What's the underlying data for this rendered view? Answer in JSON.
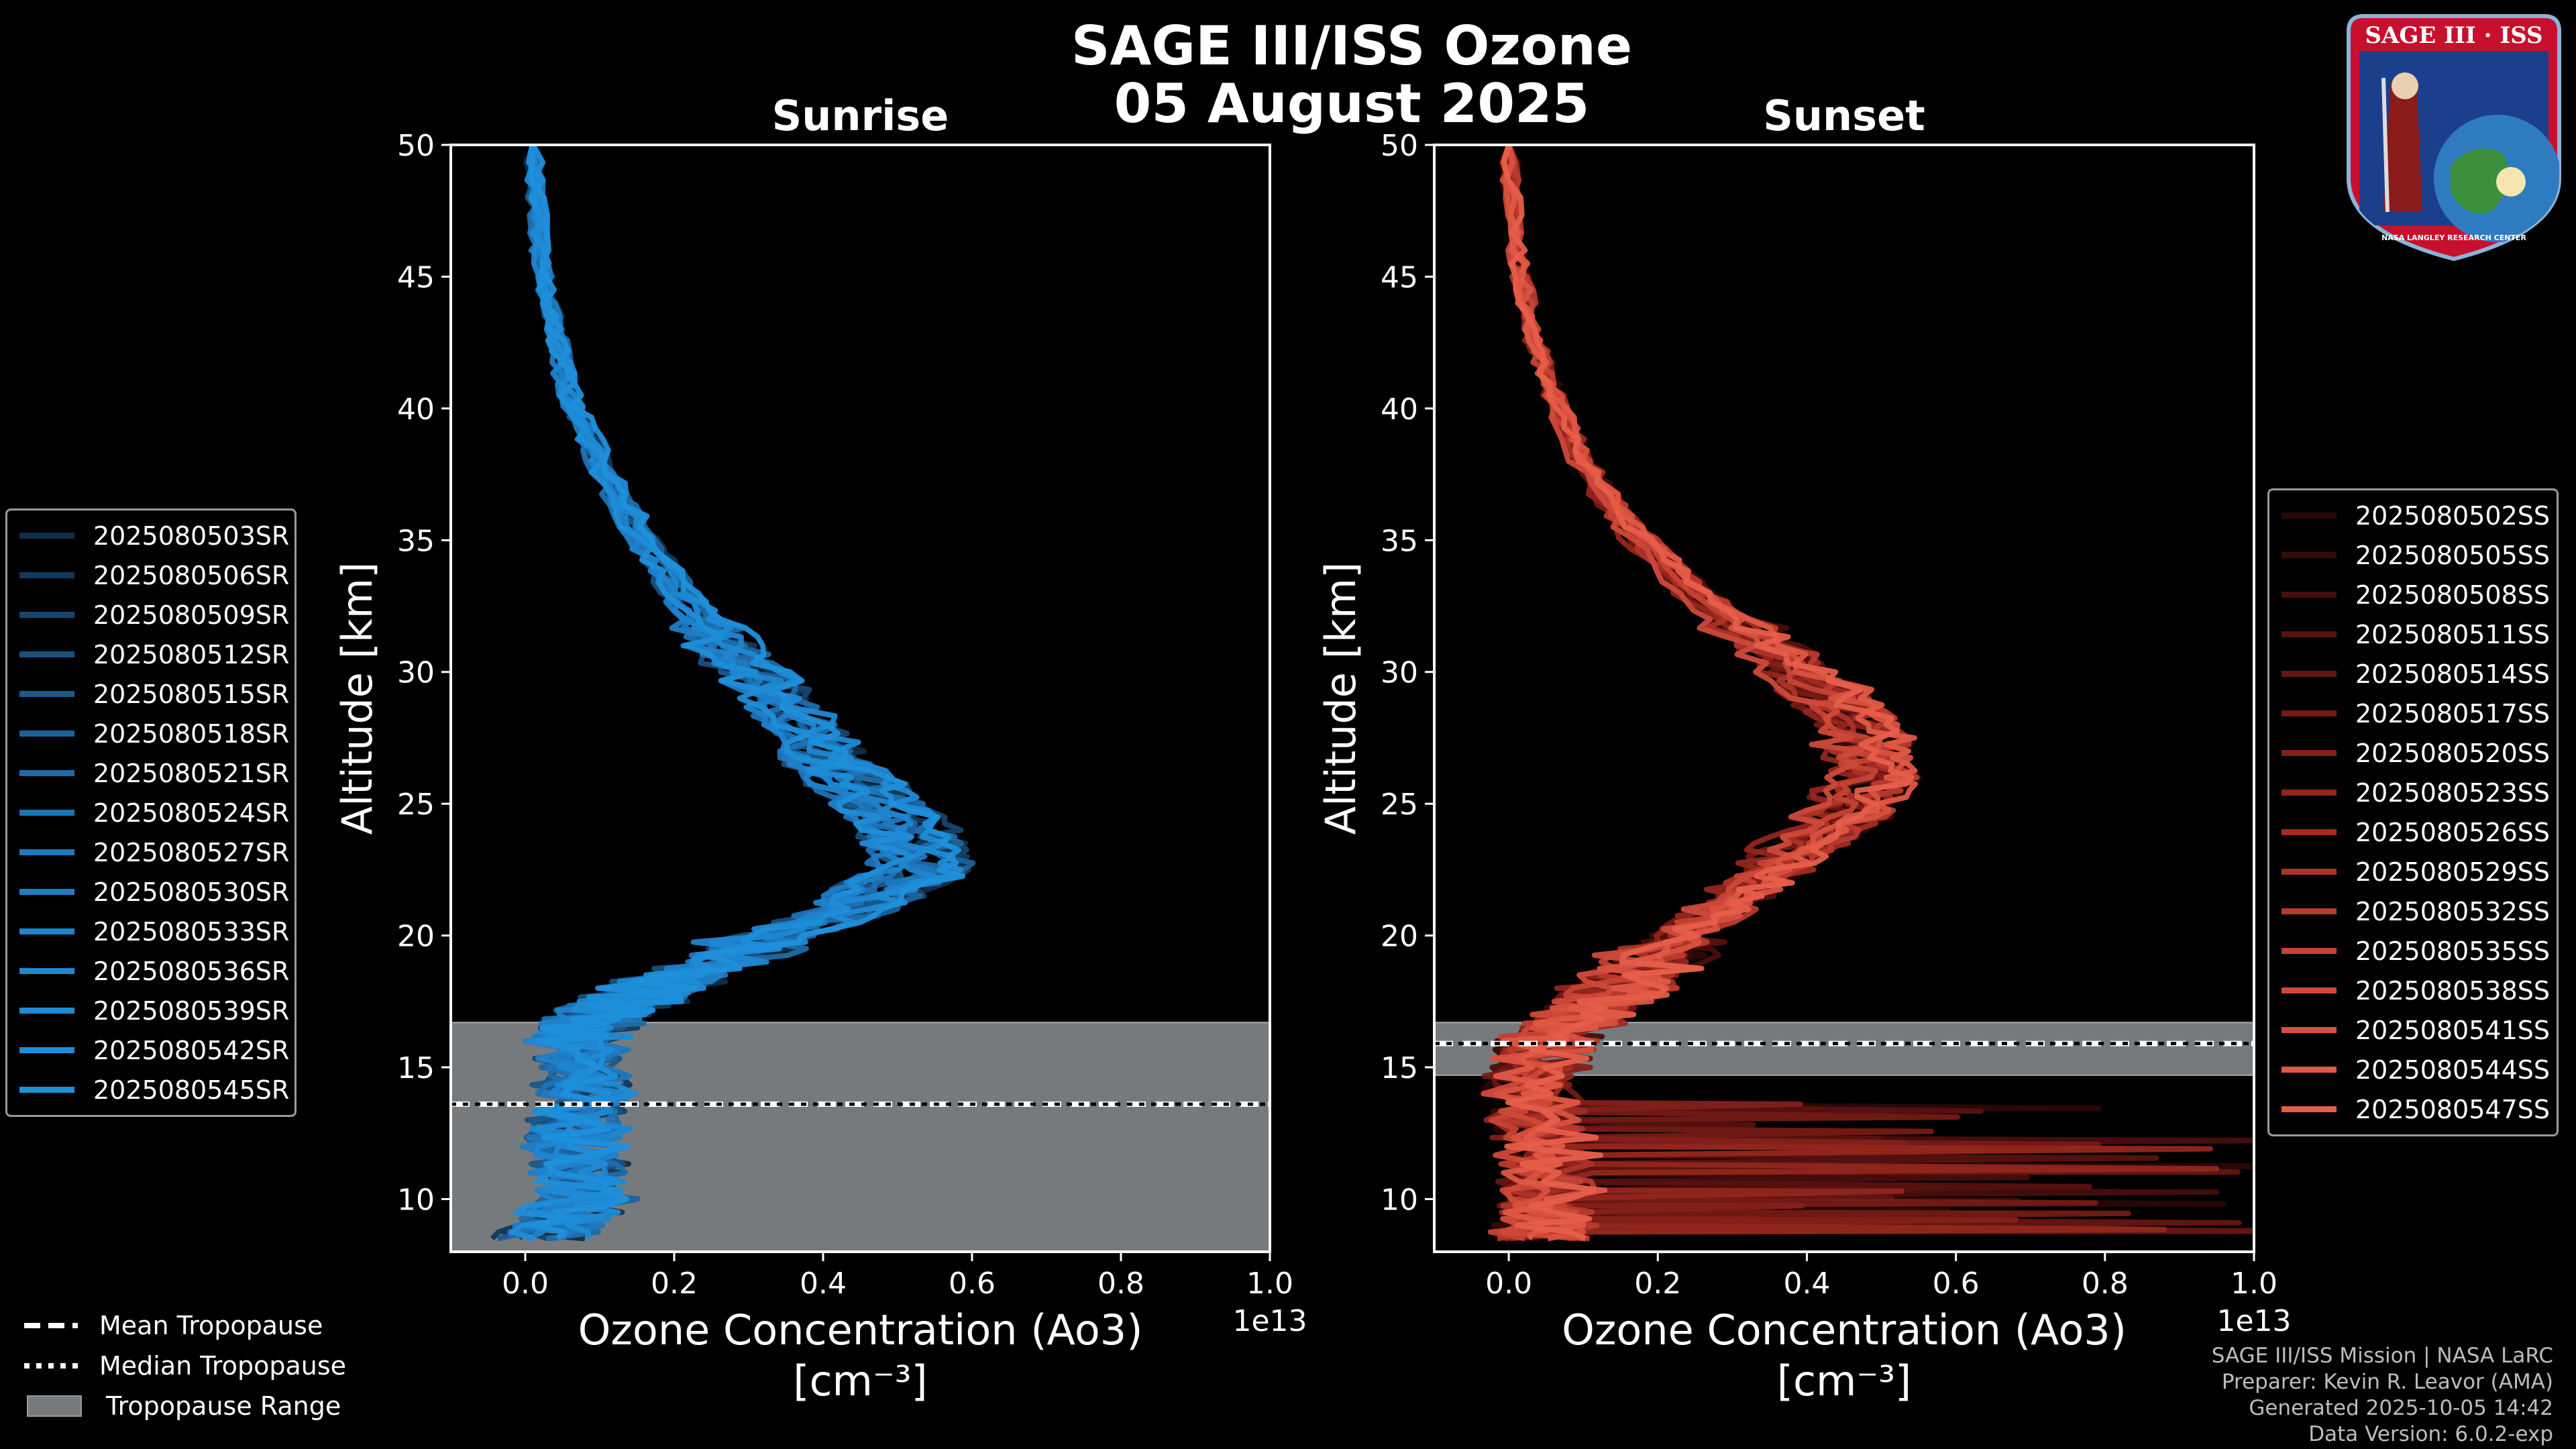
{
  "title": {
    "line1": "SAGE III/ISS Ozone",
    "line2": "05 August 2025"
  },
  "logo": {
    "text_top": "SAGE III · ISS",
    "text_bottom": "NASA LANGLEY RESEARCH CENTER"
  },
  "footer": [
    "SAGE III/ISS Mission | NASA LaRC",
    "Preparer: Kevin R. Leavor (AMA)",
    "Generated 2025-10-05 14:42",
    "Data Version: 6.0.2-exp"
  ],
  "bottom_legend": {
    "mean": "Mean Tropopause",
    "median": "Median Tropopause",
    "range": "Tropopause Range"
  },
  "colors": {
    "sunrise": "#1f8fd6",
    "sunset": "#e8584a",
    "tropopause_band": "#777a7d"
  },
  "chart_data": [
    {
      "type": "line",
      "name": "sunrise",
      "title": "Sunrise",
      "xlabel": "Ozone Concentration (Ao3)",
      "xunit": "[cm^-3]",
      "ylabel": "Altitude [km]",
      "x_offset_label": "1e13",
      "xlim": [
        -0.1,
        1.0
      ],
      "ylim": [
        8,
        50
      ],
      "x_scale": 10000000000000.0,
      "xticks": [
        "0.0",
        "0.2",
        "0.4",
        "0.6",
        "0.8",
        "1.0"
      ],
      "yticks": [
        "10",
        "15",
        "20",
        "25",
        "30",
        "35",
        "40",
        "45",
        "50"
      ],
      "tropopause": {
        "range": [
          8,
          16.7
        ],
        "mean": 13.6,
        "median": 13.6
      },
      "series_names": [
        "2025080503SR",
        "2025080506SR",
        "2025080509SR",
        "2025080512SR",
        "2025080515SR",
        "2025080518SR",
        "2025080521SR",
        "2025080524SR",
        "2025080527SR",
        "2025080530SR",
        "2025080533SR",
        "2025080536SR",
        "2025080539SR",
        "2025080542SR",
        "2025080545SR"
      ],
      "series_colors": [
        "#0f2f4a",
        "#123a5c",
        "#15456d",
        "#18507e",
        "#1a5a8e",
        "#1c639c",
        "#1d6ba9",
        "#1e72b5",
        "#1f78be",
        "#1f7dc6",
        "#1f82cc",
        "#1f86d1",
        "#1f8ad5",
        "#1f8dd8",
        "#1f90db"
      ],
      "base_profile": [
        [
          0.02,
          8.5
        ],
        [
          0.08,
          10
        ],
        [
          0.07,
          12
        ],
        [
          0.08,
          14
        ],
        [
          0.07,
          16
        ],
        [
          0.1,
          17
        ],
        [
          0.18,
          18
        ],
        [
          0.3,
          19.5
        ],
        [
          0.44,
          21
        ],
        [
          0.54,
          22.5
        ],
        [
          0.52,
          24
        ],
        [
          0.46,
          25.5
        ],
        [
          0.4,
          27
        ],
        [
          0.34,
          29
        ],
        [
          0.27,
          31
        ],
        [
          0.21,
          33
        ],
        [
          0.15,
          35.5
        ],
        [
          0.1,
          38
        ],
        [
          0.06,
          40.5
        ],
        [
          0.04,
          43
        ],
        [
          0.02,
          46
        ],
        [
          0.01,
          50
        ]
      ]
    },
    {
      "type": "line",
      "name": "sunset",
      "title": "Sunset",
      "xlabel": "Ozone Concentration (Ao3)",
      "xunit": "[cm^-3]",
      "ylabel": "Altitude [km]",
      "x_offset_label": "1e13",
      "xlim": [
        -0.1,
        1.0
      ],
      "ylim": [
        8,
        50
      ],
      "x_scale": 10000000000000.0,
      "xticks": [
        "0.0",
        "0.2",
        "0.4",
        "0.6",
        "0.8",
        "1.0"
      ],
      "yticks": [
        "10",
        "15",
        "20",
        "25",
        "30",
        "35",
        "40",
        "45",
        "50"
      ],
      "tropopause": {
        "range": [
          14.7,
          16.7
        ],
        "mean": 15.9,
        "median": 15.9
      },
      "series_names": [
        "2025080502SS",
        "2025080505SS",
        "2025080508SS",
        "2025080511SS",
        "2025080514SS",
        "2025080517SS",
        "2025080520SS",
        "2025080523SS",
        "2025080526SS",
        "2025080529SS",
        "2025080532SS",
        "2025080535SS",
        "2025080538SS",
        "2025080541SS",
        "2025080544SS",
        "2025080547SS"
      ],
      "series_colors": [
        "#2a0807",
        "#380b09",
        "#470e0c",
        "#56120f",
        "#651612",
        "#741a15",
        "#832019",
        "#92261d",
        "#a02c22",
        "#ad3328",
        "#b93a2e",
        "#c44234",
        "#ce493a",
        "#d75140",
        "#df5845",
        "#e65e4a"
      ],
      "base_profile": [
        [
          0.04,
          8.5
        ],
        [
          0.06,
          10
        ],
        [
          0.05,
          12
        ],
        [
          0.03,
          14
        ],
        [
          0.05,
          16
        ],
        [
          0.1,
          17
        ],
        [
          0.17,
          18.5
        ],
        [
          0.23,
          20
        ],
        [
          0.31,
          21.5
        ],
        [
          0.38,
          23
        ],
        [
          0.45,
          24.5
        ],
        [
          0.49,
          26
        ],
        [
          0.48,
          27.5
        ],
        [
          0.44,
          29
        ],
        [
          0.35,
          31
        ],
        [
          0.25,
          33
        ],
        [
          0.16,
          35.5
        ],
        [
          0.1,
          38
        ],
        [
          0.06,
          40.5
        ],
        [
          0.03,
          43
        ],
        [
          0.01,
          46
        ],
        [
          0.0,
          50
        ]
      ]
    }
  ]
}
